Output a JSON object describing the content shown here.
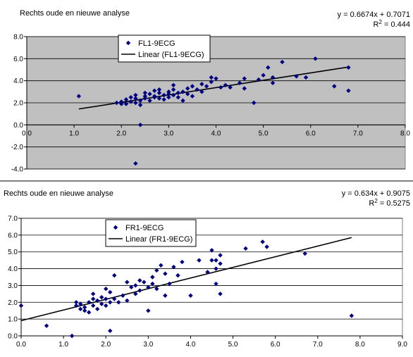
{
  "chart_data": [
    {
      "type": "scatter",
      "title": "Rechts oude en nieuwe analyse",
      "equation": "y = 0.6674x + 0.7071",
      "r2_prefix": "R",
      "r2_sup": "2",
      "r2_value": " = 0.444",
      "legend": {
        "points": "FL1-9ECG",
        "line": "Linear (FL1-9ECG)",
        "position": "top-left"
      },
      "xlim": [
        0,
        8
      ],
      "ylim": [
        -4,
        8
      ],
      "xticks": [
        "0.0",
        "1.0",
        "2.0",
        "3.0",
        "4.0",
        "5.0",
        "6.0",
        "7.0",
        "8.0"
      ],
      "yticks": [
        "8.0",
        "6.0",
        "4.0",
        "2.0",
        "0.0",
        "-2.0",
        "-4.0"
      ],
      "grid": true,
      "colors": {
        "plot_bg": "#c0c0c0",
        "marker": "#000080",
        "line": "#000000"
      },
      "trendline": {
        "slope": 0.6674,
        "intercept": 0.7071,
        "x_range": [
          1.1,
          6.8
        ]
      },
      "points": [
        [
          1.1,
          2.6
        ],
        [
          1.9,
          2.0
        ],
        [
          2.0,
          2.1
        ],
        [
          2.0,
          1.9
        ],
        [
          2.1,
          2.3
        ],
        [
          2.1,
          1.9
        ],
        [
          2.2,
          2.5
        ],
        [
          2.2,
          2.1
        ],
        [
          2.3,
          2.7
        ],
        [
          2.3,
          2.4
        ],
        [
          2.3,
          2.0
        ],
        [
          2.4,
          2.2
        ],
        [
          2.4,
          1.8
        ],
        [
          2.4,
          0.0
        ],
        [
          2.5,
          2.6
        ],
        [
          2.5,
          2.9
        ],
        [
          2.5,
          2.4
        ],
        [
          2.6,
          2.8
        ],
        [
          2.6,
          2.2
        ],
        [
          2.7,
          3.1
        ],
        [
          2.7,
          2.6
        ],
        [
          2.7,
          2.5
        ],
        [
          2.8,
          3.2
        ],
        [
          2.8,
          2.9
        ],
        [
          2.8,
          2.4
        ],
        [
          2.9,
          2.7
        ],
        [
          2.9,
          2.3
        ],
        [
          3.0,
          2.8
        ],
        [
          3.0,
          3.0
        ],
        [
          3.0,
          2.5
        ],
        [
          3.1,
          3.2
        ],
        [
          3.1,
          2.7
        ],
        [
          3.1,
          3.6
        ],
        [
          3.2,
          2.9
        ],
        [
          3.2,
          2.5
        ],
        [
          3.3,
          3.0
        ],
        [
          3.3,
          2.2
        ],
        [
          3.4,
          2.8
        ],
        [
          3.4,
          3.3
        ],
        [
          3.5,
          3.5
        ],
        [
          3.5,
          2.6
        ],
        [
          3.6,
          3.2
        ],
        [
          3.7,
          3.7
        ],
        [
          3.7,
          3.0
        ],
        [
          3.8,
          3.5
        ],
        [
          3.9,
          3.9
        ],
        [
          3.9,
          4.3
        ],
        [
          4.0,
          4.2
        ],
        [
          4.1,
          3.4
        ],
        [
          4.2,
          3.6
        ],
        [
          4.3,
          3.4
        ],
        [
          4.5,
          3.8
        ],
        [
          4.6,
          4.2
        ],
        [
          4.6,
          3.3
        ],
        [
          4.8,
          2.0
        ],
        [
          4.9,
          4.1
        ],
        [
          5.0,
          4.5
        ],
        [
          5.1,
          5.2
        ],
        [
          5.2,
          3.8
        ],
        [
          5.2,
          4.3
        ],
        [
          5.4,
          5.7
        ],
        [
          5.7,
          4.4
        ],
        [
          5.9,
          4.3
        ],
        [
          6.1,
          6.0
        ],
        [
          6.5,
          3.5
        ],
        [
          6.8,
          3.1
        ],
        [
          6.8,
          5.2
        ],
        [
          2.3,
          -3.5
        ]
      ]
    },
    {
      "type": "scatter",
      "title": "Rechts oude en nieuwe analyse",
      "equation": "y = 0.634x + 0.9075",
      "r2_prefix": "R",
      "r2_sup": "2",
      "r2_value": " = 0.5275",
      "legend": {
        "points": "FR1-9ECG",
        "line": "Linear (FR1-9ECG)",
        "position": "top-left"
      },
      "xlim": [
        0,
        9
      ],
      "ylim": [
        0,
        7
      ],
      "xticks": [
        "0.0",
        "1.0",
        "2.0",
        "3.0",
        "4.0",
        "5.0",
        "6.0",
        "7.0",
        "8.0",
        "9.0"
      ],
      "yticks": [
        "7.0",
        "6.0",
        "5.0",
        "4.0",
        "3.0",
        "2.0",
        "1.0",
        "0.0"
      ],
      "grid": true,
      "colors": {
        "plot_bg": "#ffffff",
        "marker": "#000080",
        "line": "#000000"
      },
      "trendline": {
        "slope": 0.634,
        "intercept": 0.9075,
        "x_range": [
          0,
          7.8
        ]
      },
      "points": [
        [
          0.0,
          1.8
        ],
        [
          0.6,
          0.6
        ],
        [
          1.2,
          0.0
        ],
        [
          1.3,
          2.0
        ],
        [
          1.3,
          1.8
        ],
        [
          1.4,
          1.6
        ],
        [
          1.4,
          1.9
        ],
        [
          1.5,
          1.5
        ],
        [
          1.5,
          1.7
        ],
        [
          1.6,
          2.0
        ],
        [
          1.6,
          1.4
        ],
        [
          1.7,
          1.8
        ],
        [
          1.7,
          2.2
        ],
        [
          1.7,
          2.5
        ],
        [
          1.8,
          1.6
        ],
        [
          1.8,
          2.1
        ],
        [
          1.9,
          1.9
        ],
        [
          1.9,
          2.3
        ],
        [
          2.0,
          2.8
        ],
        [
          2.0,
          1.8
        ],
        [
          2.0,
          2.2
        ],
        [
          2.1,
          2.0
        ],
        [
          2.1,
          2.6
        ],
        [
          2.2,
          2.2
        ],
        [
          2.2,
          3.6
        ],
        [
          2.3,
          2.0
        ],
        [
          2.1,
          0.3
        ],
        [
          2.4,
          2.4
        ],
        [
          2.5,
          2.1
        ],
        [
          2.5,
          3.2
        ],
        [
          2.6,
          2.9
        ],
        [
          2.7,
          2.5
        ],
        [
          2.7,
          3.0
        ],
        [
          2.8,
          3.3
        ],
        [
          2.8,
          2.7
        ],
        [
          2.9,
          3.2
        ],
        [
          3.0,
          1.5
        ],
        [
          3.0,
          2.9
        ],
        [
          3.1,
          3.5
        ],
        [
          3.1,
          3.1
        ],
        [
          3.2,
          2.8
        ],
        [
          3.2,
          3.9
        ],
        [
          3.3,
          4.2
        ],
        [
          3.4,
          3.7
        ],
        [
          3.4,
          2.4
        ],
        [
          3.5,
          3.1
        ],
        [
          3.6,
          4.1
        ],
        [
          3.7,
          3.6
        ],
        [
          3.8,
          4.4
        ],
        [
          4.0,
          2.4
        ],
        [
          4.2,
          4.5
        ],
        [
          4.4,
          3.8
        ],
        [
          4.5,
          4.5
        ],
        [
          4.5,
          5.1
        ],
        [
          4.6,
          3.1
        ],
        [
          4.6,
          4.0
        ],
        [
          4.6,
          4.5
        ],
        [
          4.7,
          4.8
        ],
        [
          4.7,
          4.3
        ],
        [
          4.7,
          2.5
        ],
        [
          5.3,
          5.2
        ],
        [
          5.7,
          5.6
        ],
        [
          5.8,
          5.3
        ],
        [
          6.7,
          4.9
        ],
        [
          7.8,
          1.2
        ]
      ]
    }
  ]
}
